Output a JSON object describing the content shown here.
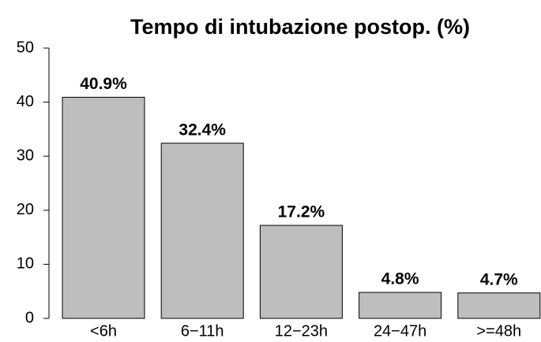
{
  "chart_data": {
    "type": "bar",
    "title": "Tempo di intubazione postop. (%)",
    "categories": [
      "<6h",
      "6−11h",
      "12−23h",
      "24−47h",
      ">=48h"
    ],
    "values": [
      40.9,
      32.4,
      17.2,
      4.8,
      4.7
    ],
    "value_labels": [
      "40.9%",
      "32.4%",
      "17.2%",
      "4.8%",
      "4.7%"
    ],
    "color": "#bebebe",
    "ylim": [
      0,
      50
    ],
    "yticks": [
      0,
      10,
      20,
      30,
      40,
      50
    ],
    "grid": false
  }
}
